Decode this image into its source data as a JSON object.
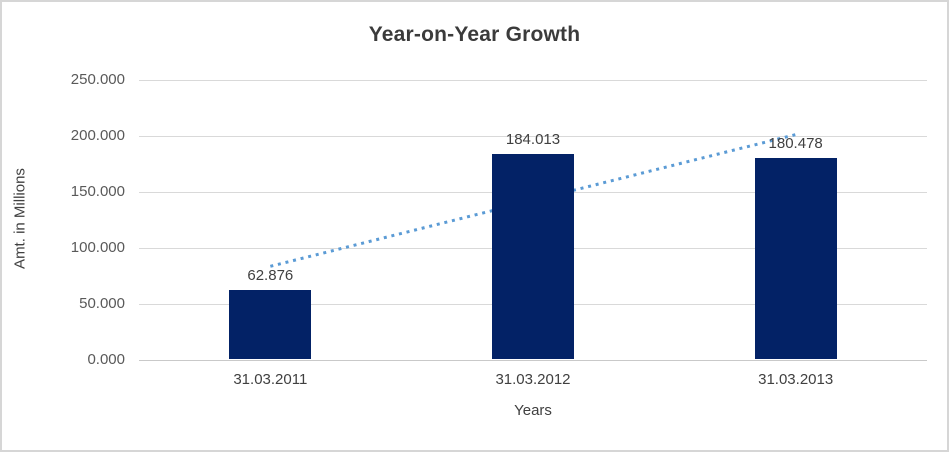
{
  "chart_data": {
    "type": "bar",
    "title": "Year-on-Year Growth",
    "xlabel": "Years",
    "ylabel": "Amt. in Millions",
    "categories": [
      "31.03.2011",
      "31.03.2012",
      "31.03.2013"
    ],
    "values": [
      62.876,
      184.013,
      180.478
    ],
    "value_labels": [
      "62.876",
      "184.013",
      "180.478"
    ],
    "ylim": [
      0,
      250
    ],
    "ytick_labels": [
      "0.000",
      "50.000",
      "100.000",
      "150.000",
      "200.000",
      "250.000"
    ],
    "ytick_values": [
      0,
      50,
      100,
      150,
      200,
      250
    ],
    "grid": true,
    "legend": "none",
    "bar_color": "#032266",
    "gridline_color": "#d9d9d9",
    "trendline": {
      "type": "linear",
      "style": "dotted",
      "color": "#5b9bd5",
      "start_value": 83.66,
      "end_value": 201.26
    }
  }
}
